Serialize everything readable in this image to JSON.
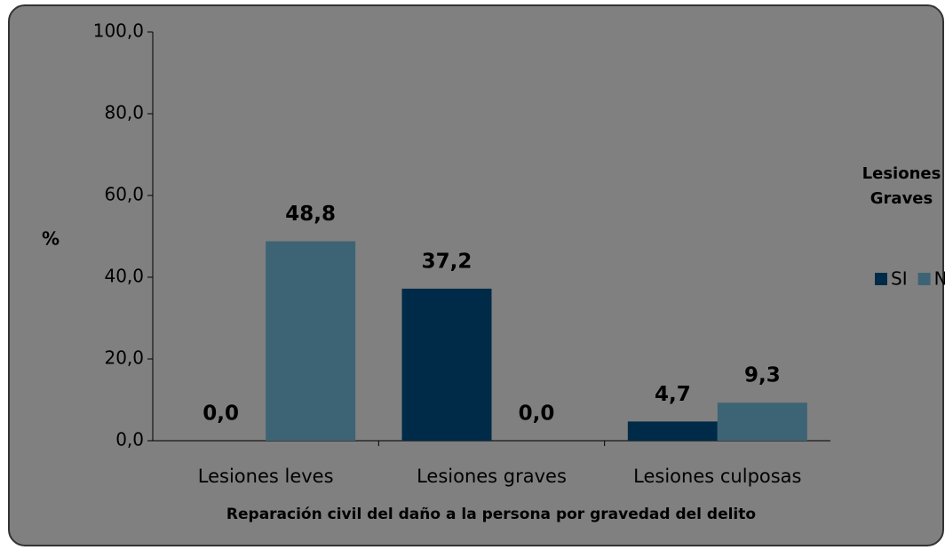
{
  "chart_data": {
    "type": "bar",
    "categories": [
      "Lesiones leves",
      "Lesiones graves",
      "Lesiones culposas"
    ],
    "series": [
      {
        "name": "SI",
        "color": "#002b48",
        "values": [
          0,
          37.2,
          4.7
        ],
        "value_labels": [
          "0,0",
          "37,2",
          "4,7"
        ]
      },
      {
        "name": "NO",
        "color": "#3d6474",
        "values": [
          48.8,
          0,
          9.3
        ],
        "value_labels": [
          "48,8",
          "0,0",
          "9,3"
        ]
      }
    ],
    "ylabel": "%",
    "xlabel": "Reparación civil del daño a la persona por gravedad del delito",
    "legend_title": "Lesiones Graves",
    "legend": "right",
    "ylim": [
      0,
      100
    ],
    "yticks": [
      {
        "value": 0,
        "label": "0,0"
      },
      {
        "value": 20,
        "label": "20,0"
      },
      {
        "value": 40,
        "label": "40,0"
      },
      {
        "value": 60,
        "label": "60,0"
      },
      {
        "value": 80,
        "label": "80,0"
      },
      {
        "value": 100,
        "label": "100,0"
      }
    ],
    "grid": false
  }
}
